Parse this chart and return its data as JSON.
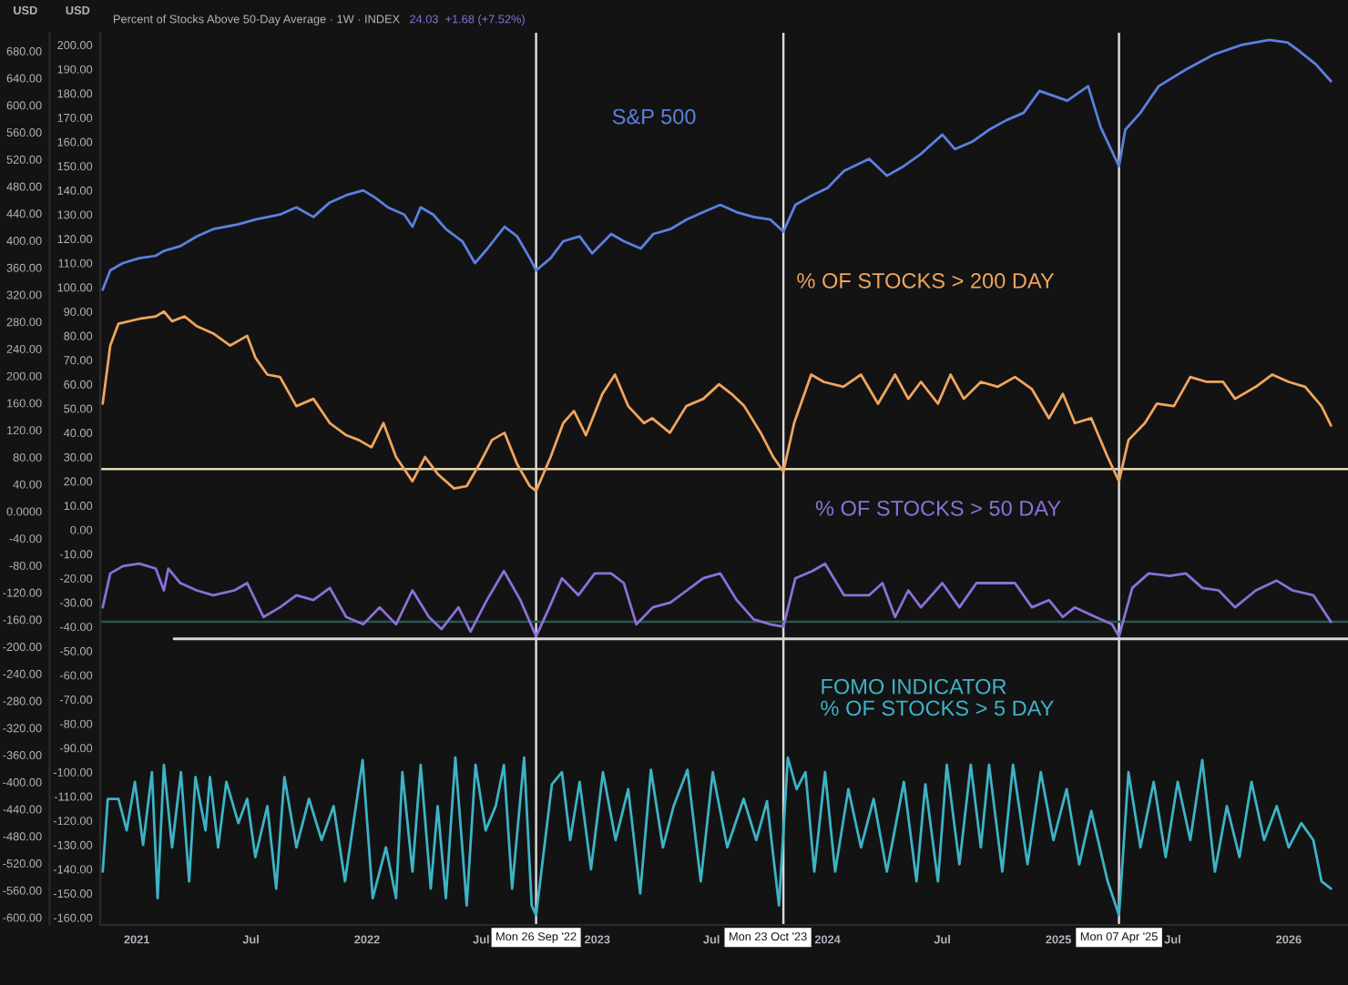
{
  "chart_data": {
    "type": "line",
    "title": "Percent of Stocks Above 50-Day Average · 1W · INDEX",
    "annotations": [
      "24.03  +1.68 (+7.52%)"
    ],
    "ylabel": "USD",
    "y2label": "USD",
    "xlim": [
      "2020-11-04",
      "2026-04-05"
    ],
    "xticks": [
      {
        "value": "2021-01-01",
        "label": "2021"
      },
      {
        "value": "2021-07-01",
        "label": "Jul"
      },
      {
        "value": "2022-01-01",
        "label": "2022"
      },
      {
        "value": "2022-07-01",
        "label": "Jul"
      },
      {
        "value": "2023-01-01",
        "label": "2023"
      },
      {
        "value": "2023-07-01",
        "label": "Jul"
      },
      {
        "value": "2024-01-01",
        "label": "2024"
      },
      {
        "value": "2024-07-01",
        "label": "Jul"
      },
      {
        "value": "2025-01-01",
        "label": "2025"
      },
      {
        "value": "2025-07-01",
        "label": "Jul"
      },
      {
        "value": "2026-01-01",
        "label": "2026"
      }
    ],
    "ylim": [
      -163,
      205
    ],
    "yticks": [
      {
        "value": 200,
        "label": "200.00"
      },
      {
        "value": 190,
        "label": "190.00"
      },
      {
        "value": 180,
        "label": "180.00"
      },
      {
        "value": 170,
        "label": "170.00"
      },
      {
        "value": 160,
        "label": "160.00"
      },
      {
        "value": 150,
        "label": "150.00"
      },
      {
        "value": 140,
        "label": "140.00"
      },
      {
        "value": 130,
        "label": "130.00"
      },
      {
        "value": 120,
        "label": "120.00"
      },
      {
        "value": 110,
        "label": "110.00"
      },
      {
        "value": 100,
        "label": "100.00"
      },
      {
        "value": 90,
        "label": "90.00"
      },
      {
        "value": 80,
        "label": "80.00"
      },
      {
        "value": 70,
        "label": "70.00"
      },
      {
        "value": 60,
        "label": "60.00"
      },
      {
        "value": 50,
        "label": "50.00"
      },
      {
        "value": 40,
        "label": "40.00"
      },
      {
        "value": 30,
        "label": "30.00"
      },
      {
        "value": 20,
        "label": "20.00"
      },
      {
        "value": 10,
        "label": "10.00"
      },
      {
        "value": 0,
        "label": "0.00"
      },
      {
        "value": -10,
        "label": "-10.00"
      },
      {
        "value": -20,
        "label": "-20.00"
      },
      {
        "value": -30,
        "label": "-30.00"
      },
      {
        "value": -40,
        "label": "-40.00"
      },
      {
        "value": -50,
        "label": "-50.00"
      },
      {
        "value": -60,
        "label": "-60.00"
      },
      {
        "value": -70,
        "label": "-70.00"
      },
      {
        "value": -80,
        "label": "-80.00"
      },
      {
        "value": -90,
        "label": "-90.00"
      },
      {
        "value": -100,
        "label": "-100.00"
      },
      {
        "value": -110,
        "label": "-110.00"
      },
      {
        "value": -120,
        "label": "-120.00"
      },
      {
        "value": -130,
        "label": "-130.00"
      },
      {
        "value": -140,
        "label": "-140.00"
      },
      {
        "value": -150,
        "label": "-150.00"
      },
      {
        "value": -160,
        "label": "-160.00"
      }
    ],
    "y2lim": [
      -611,
      707
    ],
    "y2ticks": [
      {
        "value": 680,
        "label": "680.00"
      },
      {
        "value": 640,
        "label": "640.00"
      },
      {
        "value": 600,
        "label": "600.00"
      },
      {
        "value": 560,
        "label": "560.00"
      },
      {
        "value": 520,
        "label": "520.00"
      },
      {
        "value": 480,
        "label": "480.00"
      },
      {
        "value": 440,
        "label": "440.00"
      },
      {
        "value": 400,
        "label": "400.00"
      },
      {
        "value": 360,
        "label": "360.00"
      },
      {
        "value": 320,
        "label": "320.00"
      },
      {
        "value": 280,
        "label": "280.00"
      },
      {
        "value": 240,
        "label": "240.00"
      },
      {
        "value": 200,
        "label": "200.00"
      },
      {
        "value": 160,
        "label": "160.00"
      },
      {
        "value": 120,
        "label": "120.00"
      },
      {
        "value": 80,
        "label": "80.00"
      },
      {
        "value": 40,
        "label": "40.00"
      },
      {
        "value": 0,
        "label": "0.0000"
      },
      {
        "value": -40,
        "label": "-40.00"
      },
      {
        "value": -80,
        "label": "-80.00"
      },
      {
        "value": -120,
        "label": "-120.00"
      },
      {
        "value": -160,
        "label": "-160.00"
      },
      {
        "value": -200,
        "label": "-200.00"
      },
      {
        "value": -240,
        "label": "-240.00"
      },
      {
        "value": -280,
        "label": "-280.00"
      },
      {
        "value": -320,
        "label": "-320.00"
      },
      {
        "value": -360,
        "label": "-360.00"
      },
      {
        "value": -400,
        "label": "-400.00"
      },
      {
        "value": -440,
        "label": "-440.00"
      },
      {
        "value": -480,
        "label": "-480.00"
      },
      {
        "value": -520,
        "label": "-520.00"
      },
      {
        "value": -560,
        "label": "-560.00"
      },
      {
        "value": -600,
        "label": "-600.00"
      }
    ],
    "legend": false,
    "ref_lines": [
      {
        "axis": "x",
        "value": "2022-09-26",
        "label": "Mon 26 Sep '22",
        "color": "#d9d9d9"
      },
      {
        "axis": "x",
        "value": "2023-10-23",
        "label": "Mon 23 Oct '23",
        "color": "#d9d9d9"
      },
      {
        "axis": "x",
        "value": "2025-04-07",
        "label": "Mon 07 Apr '25",
        "color": "#d9d9d9"
      },
      {
        "axis": "y",
        "value": 25,
        "color": "#e6d8b8"
      },
      {
        "axis": "y",
        "value": -38,
        "color": "#2c5550"
      }
    ],
    "series": [
      {
        "name": "S&P 500",
        "color": "#5b80e0",
        "x": [
          "2020-11-08",
          "2020-11-20",
          "2020-12-10",
          "2021-01-05",
          "2021-01-31",
          "2021-02-13",
          "2021-03-11",
          "2021-04-06",
          "2021-05-02",
          "2021-06-11",
          "2021-07-08",
          "2021-08-16",
          "2021-09-11",
          "2021-10-08",
          "2021-11-03",
          "2021-11-29",
          "2021-12-26",
          "2022-01-14",
          "2022-02-03",
          "2022-03-01",
          "2022-03-14",
          "2022-03-27",
          "2022-04-16",
          "2022-05-06",
          "2022-06-01",
          "2022-06-21",
          "2022-07-11",
          "2022-08-07",
          "2022-08-27",
          "2022-09-16",
          "2022-09-26",
          "2022-10-19",
          "2022-11-08",
          "2022-12-04",
          "2022-12-24",
          "2023-01-23",
          "2023-02-12",
          "2023-03-11",
          "2023-03-31",
          "2023-04-27",
          "2023-05-23",
          "2023-06-18",
          "2023-07-15",
          "2023-08-10",
          "2023-09-06",
          "2023-10-02",
          "2023-10-23",
          "2023-11-11",
          "2023-12-08",
          "2024-01-01",
          "2024-01-27",
          "2024-03-07",
          "2024-04-04",
          "2024-05-01",
          "2024-05-28",
          "2024-07-01",
          "2024-07-21",
          "2024-08-17",
          "2024-09-13",
          "2024-10-11",
          "2024-11-07",
          "2024-12-02",
          "2025-01-15",
          "2025-02-17",
          "2025-03-09",
          "2025-04-07",
          "2025-04-17",
          "2025-05-11",
          "2025-06-09",
          "2025-07-23",
          "2025-09-04",
          "2025-10-18",
          "2025-12-01",
          "2025-12-30",
          "2026-01-15",
          "2026-02-13",
          "2026-03-09"
        ],
        "values": [
          99,
          107,
          110,
          112,
          113,
          115,
          117,
          121,
          124,
          126,
          128,
          130,
          133,
          129,
          135,
          138,
          140,
          137,
          133,
          130,
          125,
          133,
          130,
          124,
          119,
          110,
          116,
          125,
          121,
          112,
          107,
          112,
          119,
          121,
          114,
          122,
          119,
          116,
          122,
          124,
          128,
          131,
          134,
          131,
          129,
          128,
          123,
          134,
          138,
          141,
          148,
          153,
          146,
          150,
          155,
          163,
          157,
          160,
          165,
          169,
          172,
          181,
          177,
          183,
          166,
          150,
          165,
          172,
          183,
          190,
          196,
          200,
          202,
          201,
          198,
          192,
          185
        ]
      },
      {
        "name": "% OF STOCKS > 200 DAY",
        "color": "#f0a55e",
        "x": [
          "2020-11-08",
          "2020-11-20",
          "2020-12-03",
          "2021-01-05",
          "2021-01-31",
          "2021-02-13",
          "2021-02-26",
          "2021-03-18",
          "2021-04-06",
          "2021-05-02",
          "2021-05-29",
          "2021-06-25",
          "2021-07-08",
          "2021-07-27",
          "2021-08-16",
          "2021-09-11",
          "2021-10-08",
          "2021-11-03",
          "2021-11-29",
          "2021-12-19",
          "2022-01-08",
          "2022-01-27",
          "2022-02-16",
          "2022-03-14",
          "2022-04-03",
          "2022-04-23",
          "2022-05-19",
          "2022-06-08",
          "2022-06-28",
          "2022-07-18",
          "2022-08-07",
          "2022-08-27",
          "2022-09-16",
          "2022-09-26",
          "2022-10-19",
          "2022-11-08",
          "2022-11-25",
          "2022-12-14",
          "2023-01-09",
          "2023-01-29",
          "2023-02-19",
          "2023-03-16",
          "2023-03-29",
          "2023-04-26",
          "2023-05-22",
          "2023-06-18",
          "2023-07-13",
          "2023-08-02",
          "2023-08-22",
          "2023-09-17",
          "2023-10-07",
          "2023-10-23",
          "2023-11-09",
          "2023-12-06",
          "2023-12-26",
          "2024-01-26",
          "2024-02-23",
          "2024-03-21",
          "2024-04-17",
          "2024-05-08",
          "2024-05-28",
          "2024-06-24",
          "2024-07-14",
          "2024-08-04",
          "2024-08-31",
          "2024-09-27",
          "2024-10-24",
          "2024-11-20",
          "2024-12-17",
          "2025-01-08",
          "2025-01-27",
          "2025-02-22",
          "2025-03-20",
          "2025-04-07",
          "2025-04-22",
          "2025-05-18",
          "2025-06-06",
          "2025-07-03",
          "2025-07-29",
          "2025-08-24",
          "2025-09-19",
          "2025-10-08",
          "2025-11-10",
          "2025-12-06",
          "2026-01-01",
          "2026-01-27",
          "2026-02-22",
          "2026-03-09"
        ],
        "values": [
          52,
          76,
          85,
          87,
          88,
          90,
          86,
          88,
          84,
          81,
          76,
          80,
          71,
          64,
          63,
          51,
          54,
          44,
          39,
          37,
          34,
          44,
          30,
          20,
          30,
          23,
          17,
          18,
          27,
          37,
          40,
          27,
          18,
          16,
          30,
          44,
          49,
          39,
          56,
          64,
          51,
          44,
          46,
          40,
          51,
          54,
          60,
          56,
          51,
          40,
          30,
          24,
          44,
          64,
          61,
          59,
          64,
          52,
          64,
          54,
          61,
          52,
          64,
          54,
          61,
          59,
          63,
          58,
          46,
          56,
          44,
          46,
          30,
          20,
          37,
          44,
          52,
          51,
          63,
          61,
          61,
          54,
          59,
          64,
          61,
          59,
          51,
          43
        ]
      },
      {
        "name": "% OF STOCKS > 50 DAY",
        "color": "#8b70d8",
        "x": [
          "2020-11-08",
          "2020-11-20",
          "2020-12-10",
          "2021-01-05",
          "2021-01-31",
          "2021-02-13",
          "2021-02-20",
          "2021-03-11",
          "2021-04-06",
          "2021-05-02",
          "2021-06-05",
          "2021-06-25",
          "2021-07-21",
          "2021-08-16",
          "2021-09-11",
          "2021-10-08",
          "2021-11-03",
          "2021-11-29",
          "2021-12-26",
          "2022-01-21",
          "2022-02-16",
          "2022-03-14",
          "2022-04-09",
          "2022-04-29",
          "2022-05-26",
          "2022-06-14",
          "2022-07-10",
          "2022-08-06",
          "2022-09-01",
          "2022-09-26",
          "2022-10-17",
          "2022-11-06",
          "2022-12-02",
          "2022-12-28",
          "2023-01-23",
          "2023-02-12",
          "2023-03-04",
          "2023-03-30",
          "2023-04-27",
          "2023-05-23",
          "2023-06-18",
          "2023-07-15",
          "2023-08-10",
          "2023-09-06",
          "2023-10-02",
          "2023-10-23",
          "2023-11-11",
          "2023-12-08",
          "2023-12-28",
          "2024-01-27",
          "2024-03-07",
          "2024-03-28",
          "2024-04-17",
          "2024-05-08",
          "2024-05-28",
          "2024-07-01",
          "2024-07-28",
          "2024-08-24",
          "2024-09-27",
          "2024-10-24",
          "2024-11-20",
          "2024-12-17",
          "2025-01-08",
          "2025-01-27",
          "2025-03-01",
          "2025-03-27",
          "2025-04-07",
          "2025-04-28",
          "2025-05-24",
          "2025-06-26",
          "2025-07-22",
          "2025-08-17",
          "2025-09-12",
          "2025-10-08",
          "2025-11-10",
          "2025-12-13",
          "2026-01-07",
          "2026-02-09",
          "2026-03-09"
        ],
        "values": [
          -32,
          -18,
          -15,
          -14,
          -16,
          -25,
          -16,
          -22,
          -25,
          -27,
          -25,
          -22,
          -36,
          -32,
          -27,
          -29,
          -24,
          -36,
          -39,
          -32,
          -39,
          -25,
          -36,
          -41,
          -32,
          -42,
          -29,
          -17,
          -29,
          -44,
          -32,
          -20,
          -27,
          -18,
          -18,
          -22,
          -39,
          -32,
          -30,
          -25,
          -20,
          -18,
          -29,
          -37,
          -39,
          -40,
          -20,
          -17,
          -14,
          -27,
          -27,
          -22,
          -36,
          -25,
          -32,
          -22,
          -32,
          -22,
          -22,
          -22,
          -32,
          -29,
          -36,
          -32,
          -36,
          -39,
          -44,
          -24,
          -18,
          -19,
          -18,
          -24,
          -25,
          -32,
          -25,
          -21,
          -25,
          -27,
          -38
        ]
      },
      {
        "name": "FOMO INDICATOR\n% OF STOCKS > 5 DAY",
        "color": "#3db3c6",
        "x": [
          "2020-11-08",
          "2020-11-16",
          "2020-12-03",
          "2020-12-16",
          "2020-12-29",
          "2021-01-11",
          "2021-01-25",
          "2021-02-03",
          "2021-02-13",
          "2021-02-26",
          "2021-03-12",
          "2021-03-25",
          "2021-04-04",
          "2021-04-20",
          "2021-04-27",
          "2021-05-10",
          "2021-05-23",
          "2021-06-11",
          "2021-06-25",
          "2021-07-08",
          "2021-07-27",
          "2021-08-10",
          "2021-08-23",
          "2021-09-11",
          "2021-10-01",
          "2021-10-21",
          "2021-11-09",
          "2021-11-27",
          "2021-12-25",
          "2022-01-10",
          "2022-01-31",
          "2022-02-16",
          "2022-02-26",
          "2022-03-14",
          "2022-03-27",
          "2022-04-12",
          "2022-04-23",
          "2022-05-06",
          "2022-05-21",
          "2022-06-08",
          "2022-06-22",
          "2022-07-08",
          "2022-07-24",
          "2022-08-06",
          "2022-08-19",
          "2022-09-07",
          "2022-09-19",
          "2022-09-26",
          "2022-10-21",
          "2022-11-06",
          "2022-11-19",
          "2022-12-04",
          "2022-12-22",
          "2023-01-10",
          "2023-01-30",
          "2023-02-19",
          "2023-03-10",
          "2023-03-27",
          "2023-04-15",
          "2023-05-02",
          "2023-05-24",
          "2023-06-14",
          "2023-07-03",
          "2023-07-26",
          "2023-08-21",
          "2023-09-10",
          "2023-09-27",
          "2023-10-16",
          "2023-10-30",
          "2023-11-13",
          "2023-11-27",
          "2023-12-11",
          "2023-12-28",
          "2024-01-13",
          "2024-02-03",
          "2024-02-23",
          "2024-03-14",
          "2024-04-04",
          "2024-05-01",
          "2024-05-21",
          "2024-06-04",
          "2024-06-24",
          "2024-07-08",
          "2024-07-28",
          "2024-08-15",
          "2024-08-31",
          "2024-09-13",
          "2024-10-04",
          "2024-10-21",
          "2024-11-13",
          "2024-12-04",
          "2024-12-24",
          "2025-01-14",
          "2025-02-03",
          "2025-02-22",
          "2025-03-20",
          "2025-04-07",
          "2025-04-22",
          "2025-05-11",
          "2025-06-01",
          "2025-06-20",
          "2025-07-09",
          "2025-07-29",
          "2025-08-17",
          "2025-09-06",
          "2025-09-25",
          "2025-10-15",
          "2025-11-03",
          "2025-11-23",
          "2025-12-13",
          "2026-01-01",
          "2026-01-21",
          "2026-02-09",
          "2026-02-22",
          "2026-03-09"
        ],
        "values": [
          -141,
          -111,
          -111,
          -124,
          -104,
          -130,
          -100,
          -152,
          -97,
          -131,
          -100,
          -145,
          -102,
          -124,
          -102,
          -131,
          -104,
          -121,
          -111,
          -135,
          -114,
          -148,
          -102,
          -131,
          -111,
          -128,
          -114,
          -145,
          -95,
          -152,
          -131,
          -152,
          -100,
          -141,
          -97,
          -148,
          -114,
          -152,
          -94,
          -155,
          -97,
          -124,
          -114,
          -97,
          -148,
          -94,
          -155,
          -159,
          -105,
          -100,
          -128,
          -104,
          -140,
          -100,
          -128,
          -107,
          -150,
          -99,
          -131,
          -114,
          -99,
          -145,
          -100,
          -131,
          -111,
          -128,
          -112,
          -155,
          -94,
          -107,
          -100,
          -141,
          -100,
          -141,
          -107,
          -131,
          -111,
          -141,
          -104,
          -145,
          -105,
          -145,
          -97,
          -138,
          -97,
          -131,
          -97,
          -141,
          -97,
          -138,
          -100,
          -128,
          -107,
          -138,
          -116,
          -145,
          -159,
          -100,
          -131,
          -104,
          -135,
          -104,
          -128,
          -95,
          -141,
          -114,
          -135,
          -104,
          -128,
          -114,
          -131,
          -121,
          -128,
          -145,
          -148
        ]
      },
      {
        "color": "#d9d9d9",
        "x": [
          "2021-03-01",
          "2026-04-05"
        ],
        "values": [
          -45,
          -45
        ]
      }
    ]
  }
}
